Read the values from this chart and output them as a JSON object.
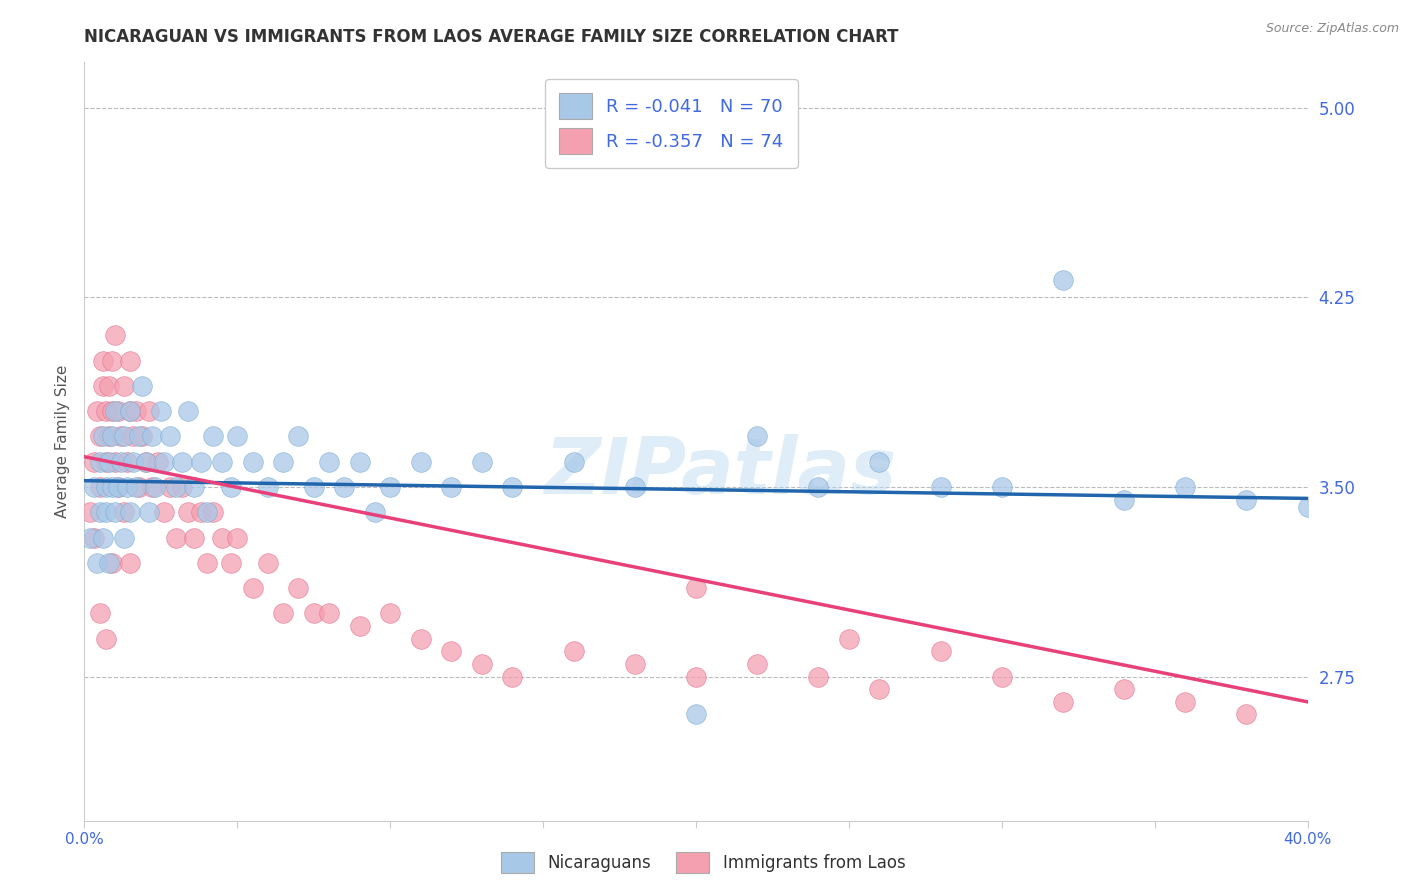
{
  "title": "NICARAGUAN VS IMMIGRANTS FROM LAOS AVERAGE FAMILY SIZE CORRELATION CHART",
  "source_text": "Source: ZipAtlas.com",
  "ylabel": "Average Family Size",
  "yticks_right": [
    2.75,
    3.5,
    4.25,
    5.0
  ],
  "xmin": 0.0,
  "xmax": 0.4,
  "ymin": 2.18,
  "ymax": 5.18,
  "blue_R": -0.041,
  "blue_N": 70,
  "pink_R": -0.357,
  "pink_N": 74,
  "blue_color": "#a8c8e8",
  "pink_color": "#f4a0b0",
  "blue_edge_color": "#7aaad0",
  "pink_edge_color": "#e07090",
  "blue_line_color": "#2166ac",
  "pink_line_color": "#e8407a",
  "legend_label_blue": "Nicaraguans",
  "legend_label_pink": "Immigrants from Laos",
  "watermark": "ZIPatlas",
  "title_fontsize": 12,
  "tick_label_color": "#4169e1",
  "background_color": "#ffffff",
  "blue_line_x": [
    0.0,
    0.4
  ],
  "blue_line_y": [
    3.525,
    3.455
  ],
  "pink_line_x": [
    0.0,
    0.4
  ],
  "pink_line_y": [
    3.62,
    2.65
  ],
  "blue_scatter_x": [
    0.002,
    0.003,
    0.004,
    0.005,
    0.005,
    0.006,
    0.006,
    0.007,
    0.007,
    0.008,
    0.008,
    0.009,
    0.009,
    0.01,
    0.01,
    0.011,
    0.012,
    0.013,
    0.013,
    0.014,
    0.015,
    0.015,
    0.016,
    0.017,
    0.018,
    0.019,
    0.02,
    0.021,
    0.022,
    0.023,
    0.025,
    0.026,
    0.028,
    0.03,
    0.032,
    0.034,
    0.036,
    0.038,
    0.04,
    0.042,
    0.045,
    0.048,
    0.05,
    0.055,
    0.06,
    0.065,
    0.07,
    0.075,
    0.08,
    0.085,
    0.09,
    0.095,
    0.1,
    0.11,
    0.12,
    0.13,
    0.14,
    0.16,
    0.18,
    0.2,
    0.22,
    0.24,
    0.26,
    0.28,
    0.3,
    0.32,
    0.34,
    0.36,
    0.38,
    0.4
  ],
  "blue_scatter_y": [
    3.3,
    3.5,
    3.2,
    3.4,
    3.6,
    3.3,
    3.7,
    3.5,
    3.4,
    3.6,
    3.2,
    3.5,
    3.7,
    3.4,
    3.8,
    3.5,
    3.6,
    3.3,
    3.7,
    3.5,
    3.8,
    3.4,
    3.6,
    3.5,
    3.7,
    3.9,
    3.6,
    3.4,
    3.7,
    3.5,
    3.8,
    3.6,
    3.7,
    3.5,
    3.6,
    3.8,
    3.5,
    3.6,
    3.4,
    3.7,
    3.6,
    3.5,
    3.7,
    3.6,
    3.5,
    3.6,
    3.7,
    3.5,
    3.6,
    3.5,
    3.6,
    3.4,
    3.5,
    3.6,
    3.5,
    3.6,
    3.5,
    3.6,
    3.5,
    2.6,
    3.7,
    3.5,
    3.6,
    3.5,
    3.5,
    4.32,
    3.45,
    3.5,
    3.45,
    3.42
  ],
  "pink_scatter_x": [
    0.002,
    0.003,
    0.004,
    0.005,
    0.005,
    0.006,
    0.006,
    0.007,
    0.007,
    0.008,
    0.008,
    0.009,
    0.009,
    0.01,
    0.01,
    0.011,
    0.012,
    0.013,
    0.014,
    0.015,
    0.015,
    0.016,
    0.017,
    0.018,
    0.019,
    0.02,
    0.021,
    0.022,
    0.024,
    0.026,
    0.028,
    0.03,
    0.032,
    0.034,
    0.036,
    0.038,
    0.04,
    0.042,
    0.045,
    0.048,
    0.05,
    0.055,
    0.06,
    0.065,
    0.07,
    0.075,
    0.08,
    0.09,
    0.1,
    0.11,
    0.12,
    0.13,
    0.14,
    0.16,
    0.18,
    0.2,
    0.22,
    0.24,
    0.26,
    0.28,
    0.3,
    0.32,
    0.34,
    0.36,
    0.38,
    0.003,
    0.005,
    0.007,
    0.009,
    0.011,
    0.013,
    0.015,
    0.2,
    0.25
  ],
  "pink_scatter_y": [
    3.4,
    3.6,
    3.8,
    3.5,
    3.7,
    3.9,
    4.0,
    3.8,
    3.6,
    3.9,
    3.7,
    4.0,
    3.8,
    3.6,
    4.1,
    3.8,
    3.7,
    3.9,
    3.6,
    3.8,
    4.0,
    3.7,
    3.8,
    3.5,
    3.7,
    3.6,
    3.8,
    3.5,
    3.6,
    3.4,
    3.5,
    3.3,
    3.5,
    3.4,
    3.3,
    3.4,
    3.2,
    3.4,
    3.3,
    3.2,
    3.3,
    3.1,
    3.2,
    3.0,
    3.1,
    3.0,
    3.0,
    2.95,
    3.0,
    2.9,
    2.85,
    2.8,
    2.75,
    2.85,
    2.8,
    2.75,
    2.8,
    2.75,
    2.7,
    2.85,
    2.75,
    2.65,
    2.7,
    2.65,
    2.6,
    3.3,
    3.0,
    2.9,
    3.2,
    3.5,
    3.4,
    3.2,
    3.1,
    2.9
  ]
}
